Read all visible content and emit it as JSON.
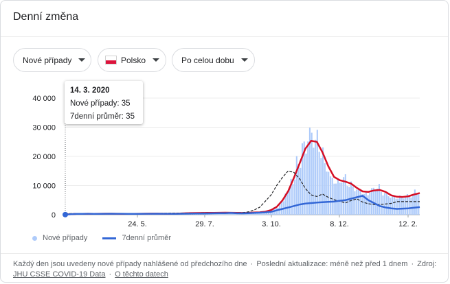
{
  "card": {
    "title": "Denní změna"
  },
  "filters": {
    "metric": "Nové případy",
    "country": "Polsko",
    "range": "Po celou dobu"
  },
  "tooltip": {
    "date": "14. 3. 2020",
    "new_cases_label": "Nové případy: 35",
    "avg_label": "7denní průměr: 35"
  },
  "legend": {
    "bars": "Nové případy",
    "line": "7denní průměr"
  },
  "footer": {
    "note": "Každý den jsou uvedeny nové případy nahlášené od předchozího dne",
    "updated": "Poslední aktualizace: méně než před 1 dnem",
    "source_prefix": "Zdroj:",
    "source_link": "JHU CSSE COVID-19 Data",
    "about_link": "O těchto datech"
  },
  "colors": {
    "bars": "#aecbfa",
    "avg_line": "#3367d6",
    "red_line": "#d50f25",
    "black_line": "#202124"
  },
  "chart_data": {
    "type": "bar",
    "x_tick_labels": [
      "24. 5.",
      "29. 7.",
      "3. 10.",
      "8. 12.",
      "12. 2."
    ],
    "y_tick_labels": [
      "0",
      "10 000",
      "20 000",
      "30 000",
      "40 000"
    ],
    "ylim": [
      0,
      40000
    ],
    "bar_values_weekly": [
      35,
      250,
      300,
      320,
      330,
      310,
      300,
      380,
      350,
      330,
      320,
      300,
      290,
      320,
      350,
      380,
      370,
      350,
      320,
      310,
      400,
      500,
      560,
      600,
      620,
      640,
      650,
      680,
      700,
      720,
      600,
      560,
      700,
      750,
      800,
      900,
      1400,
      2500,
      4300,
      8100,
      12000,
      18000,
      23000,
      27000,
      26000,
      22000,
      16000,
      12000,
      11000,
      12500,
      10500,
      9000,
      8000,
      7000,
      8500,
      9500,
      7500,
      6500,
      6000,
      6000,
      6300,
      6700,
      7800
    ],
    "series": [
      {
        "name": "7denní průměr",
        "values": [
          35,
          200,
          280,
          310,
          320,
          310,
          300,
          330,
          350,
          330,
          320,
          300,
          290,
          300,
          320,
          340,
          350,
          340,
          320,
          310,
          330,
          350,
          380,
          400,
          420,
          450,
          500,
          520,
          550,
          600,
          500,
          480,
          520,
          600,
          700,
          800,
          1000,
          1500,
          2000,
          2500,
          3000,
          3500,
          3800,
          4000,
          4200,
          4300,
          4400,
          4500,
          4800,
          5000,
          5500,
          6000,
          6500,
          5000,
          4000,
          3000,
          2500,
          2200,
          2000,
          2100,
          2200,
          2400,
          2600
        ]
      }
    ]
  }
}
